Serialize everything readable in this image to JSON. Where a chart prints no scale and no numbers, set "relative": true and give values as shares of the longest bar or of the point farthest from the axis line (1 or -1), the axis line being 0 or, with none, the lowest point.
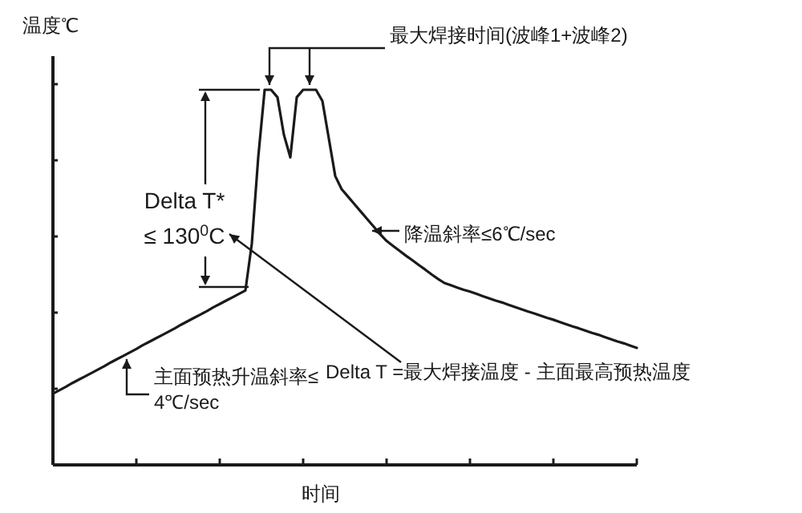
{
  "chart_data": {
    "type": "line",
    "relative": true,
    "ylabel": "温度℃",
    "xlabel": "时间",
    "color": "#1a1a1a",
    "categories": [
      null,
      null,
      null,
      null,
      null,
      null,
      null,
      null,
      null,
      null,
      null,
      null,
      null,
      null,
      null,
      null,
      null,
      null,
      null,
      null,
      null,
      null,
      null,
      null,
      null,
      null,
      null,
      null,
      null,
      null,
      null,
      null,
      null,
      null,
      null,
      null,
      null,
      null,
      null,
      null,
      null,
      null,
      null,
      null,
      null,
      null,
      null,
      null,
      null,
      null,
      null,
      null,
      null,
      null,
      null,
      null,
      null,
      null,
      null,
      null,
      null,
      null,
      null,
      null,
      null,
      null,
      null,
      null,
      null,
      null,
      null,
      null,
      null,
      null,
      null,
      null,
      null,
      null,
      null,
      null,
      null,
      null,
      null,
      null,
      null,
      null,
      null,
      null,
      null,
      null,
      null,
      null
    ],
    "values": [
      0.19,
      0.199,
      0.208,
      0.218,
      0.227,
      0.236,
      0.245,
      0.254,
      0.263,
      0.273,
      0.282,
      0.291,
      0.3,
      0.309,
      0.319,
      0.328,
      0.337,
      0.346,
      0.355,
      0.364,
      0.374,
      0.383,
      0.392,
      0.401,
      0.41,
      0.42,
      0.429,
      0.438,
      0.447,
      0.456,
      0.465,
      0.59,
      0.82,
      1.0,
      1.0,
      0.98,
      0.88,
      0.82,
      0.98,
      1.0,
      1.0,
      1.0,
      0.97,
      0.87,
      0.77,
      0.735,
      0.715,
      0.695,
      0.675,
      0.655,
      0.635,
      0.615,
      0.597,
      0.584,
      0.571,
      0.558,
      0.546,
      0.533,
      0.521,
      0.508,
      0.496,
      0.485,
      0.479,
      0.473,
      0.467,
      0.462,
      0.456,
      0.45,
      0.444,
      0.438,
      0.433,
      0.427,
      0.421,
      0.415,
      0.409,
      0.404,
      0.398,
      0.392,
      0.387,
      0.381,
      0.375,
      0.369,
      0.364,
      0.358,
      0.352,
      0.347,
      0.341,
      0.335,
      0.329,
      0.324,
      0.318,
      0.312
    ],
    "annotations": [
      "最大焊接时间(波峰1+波峰2)",
      "Delta T*",
      "≤ 130$^{0}$C",
      "降温斜率≤6℃/sec",
      "Delta T =最大焊接温度 - 主面最高预热温度",
      "主面预热升温斜率≤",
      "4℃/sec"
    ]
  }
}
